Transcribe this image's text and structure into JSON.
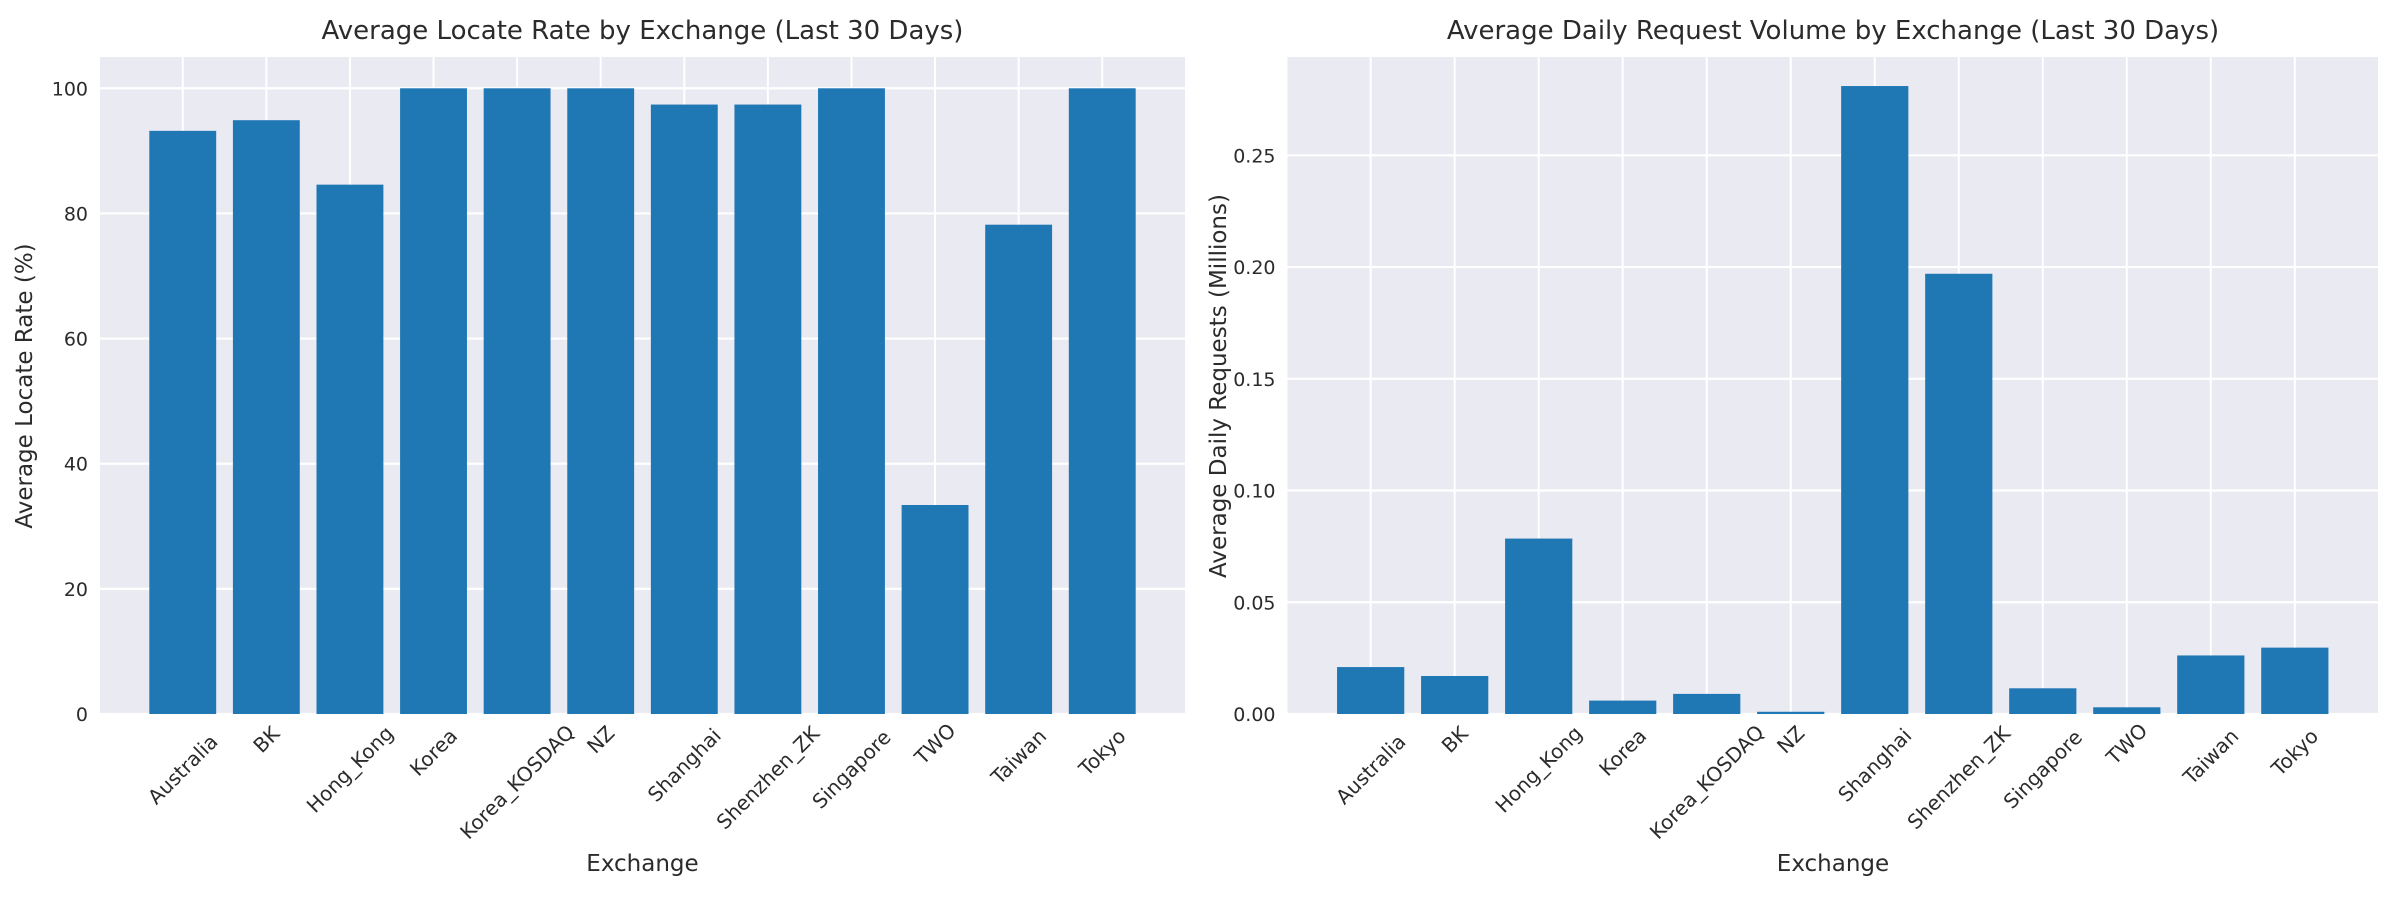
{
  "style": {
    "background": "#ffffff",
    "plot_background": "#eaeaf2",
    "grid_color": "#ffffff",
    "bar_color": "#1f77b4",
    "text_color": "#2b2b2b"
  },
  "chart_data": [
    {
      "type": "bar",
      "title": "Average Locate Rate by Exchange (Last 30 Days)",
      "xlabel": "Exchange",
      "ylabel": "Average Locate Rate (%)",
      "categories": [
        "Australia",
        "BK",
        "Hong_Kong",
        "Korea",
        "Korea_KOSDAQ",
        "NZ",
        "Shanghai",
        "Shenzhen_ZK",
        "Singapore",
        "TWO",
        "Taiwan",
        "Tokyo"
      ],
      "values": [
        93.2,
        94.9,
        84.6,
        100.0,
        100.0,
        100.0,
        97.4,
        97.4,
        100.0,
        33.4,
        78.2,
        100.0
      ],
      "ylim": [
        0,
        105
      ],
      "ytick_values": [
        0,
        20,
        40,
        60,
        80,
        100
      ],
      "ytick_labels": [
        "0",
        "20",
        "40",
        "60",
        "80",
        "100"
      ],
      "xtick_rotation": 45,
      "grid": true,
      "legend": null
    },
    {
      "type": "bar",
      "title": "Average Daily Request Volume by Exchange (Last 30 Days)",
      "xlabel": "Exchange",
      "ylabel": "Average Daily Requests (Millions)",
      "categories": [
        "Australia",
        "BK",
        "Hong_Kong",
        "Korea",
        "Korea_KOSDAQ",
        "NZ",
        "Shanghai",
        "Shenzhen_ZK",
        "Singapore",
        "TWO",
        "Taiwan",
        "Tokyo"
      ],
      "values": [
        0.021,
        0.017,
        0.0785,
        0.006,
        0.009,
        0.001,
        0.281,
        0.197,
        0.0115,
        0.003,
        0.0262,
        0.0297
      ],
      "ylim": [
        0,
        0.294
      ],
      "ytick_values": [
        0,
        0.05,
        0.1,
        0.15,
        0.2,
        0.25
      ],
      "ytick_labels": [
        "0.00",
        "0.05",
        "0.10",
        "0.15",
        "0.20",
        "0.25"
      ],
      "xtick_rotation": 45,
      "grid": true,
      "legend": null
    }
  ]
}
